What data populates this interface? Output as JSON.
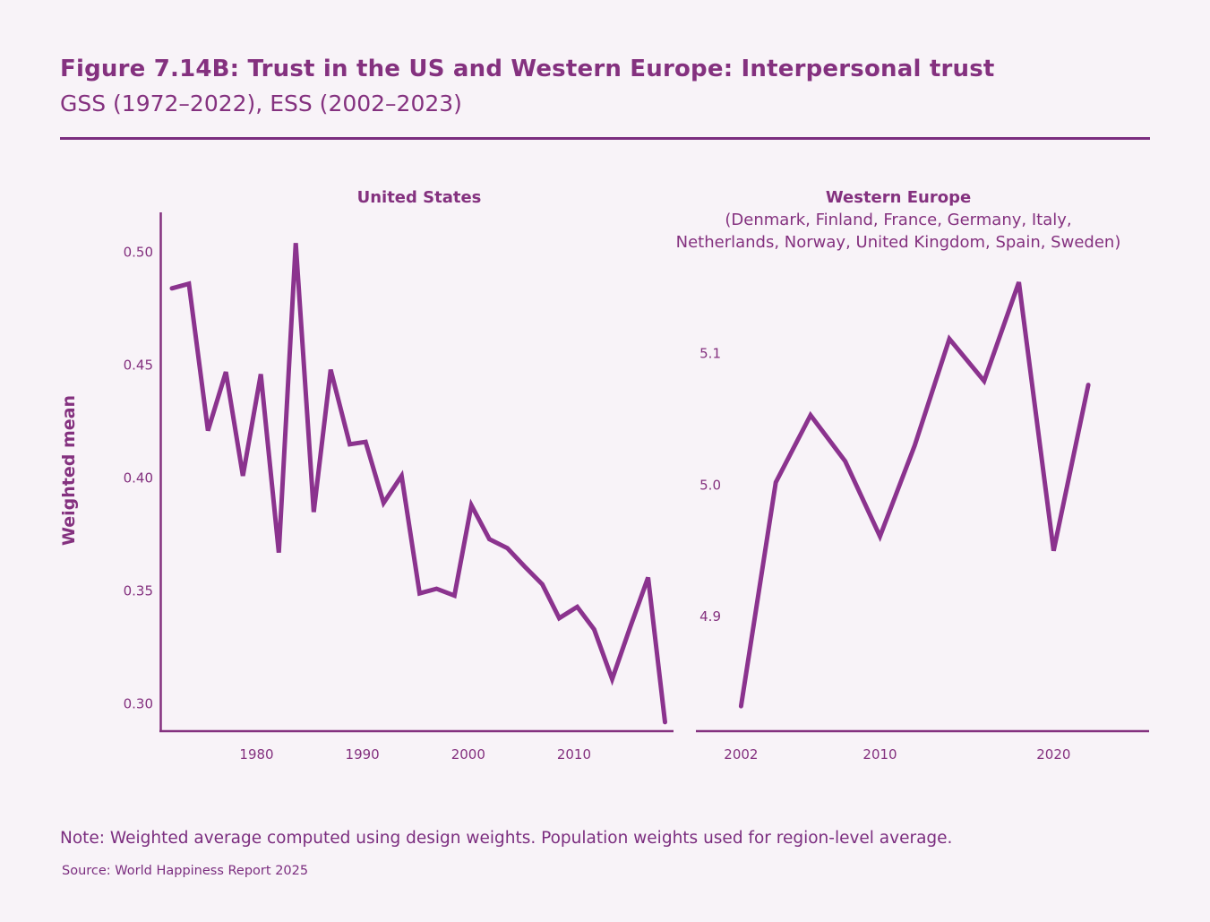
{
  "header": {
    "title": "Figure 7.14B: Trust in the US and Western Europe: Interpersonal trust",
    "subtitle": "GSS (1972–2022), ESS (2002–2023)"
  },
  "footer": {
    "note": "Note: Weighted average computed using design weights. Population weights used for region-level average.",
    "source": "Source: World Happiness Report 2025"
  },
  "colors": {
    "accent": "#84317f",
    "line": "#8b338e",
    "background": "#f8f3f8"
  },
  "chart_data": [
    {
      "type": "line",
      "title": "United States",
      "subtitle": "",
      "xlabel": "",
      "ylabel": "Weighted mean",
      "xlim": [
        1970.9,
        2019.4
      ],
      "ylim": [
        0.288,
        0.52
      ],
      "xticks": [
        1980,
        1990,
        2000,
        2010
      ],
      "xtick_labels": [
        "1980",
        "1990",
        "2000",
        "2010"
      ],
      "yticks": [
        0.3,
        0.35,
        0.4,
        0.45,
        0.5
      ],
      "ytick_labels": [
        "0.30",
        "0.35",
        "0.40",
        "0.45",
        "0.50"
      ],
      "grid": false,
      "series": [
        {
          "name": "United States",
          "x": [
            1972.0,
            1973.6,
            1975.4,
            1977.1,
            1978.7,
            1980.4,
            1982.1,
            1983.7,
            1985.4,
            1987.0,
            1988.8,
            1990.3,
            1992.0,
            1993.7,
            1995.4,
            1997.0,
            1998.7,
            2000.3,
            2002.0,
            2003.7,
            2005.3,
            2007.0,
            2008.6,
            2010.3,
            2011.9,
            2013.6,
            2015.3,
            2017.0,
            2018.6
          ],
          "y": [
            0.484,
            0.486,
            0.421,
            0.447,
            0.401,
            0.446,
            0.367,
            0.504,
            0.385,
            0.448,
            0.415,
            0.416,
            0.389,
            0.401,
            0.349,
            0.351,
            0.348,
            0.388,
            0.373,
            0.369,
            0.361,
            0.353,
            0.338,
            0.343,
            0.333,
            0.311,
            0.334,
            0.356,
            0.292
          ]
        }
      ]
    },
    {
      "type": "line",
      "title": "Western Europe",
      "subtitle": [
        "(Denmark, Finland, France, Germany, Italy,",
        "Netherlands, Norway, United Kingdom, Spain, Sweden)"
      ],
      "xlabel": "",
      "ylabel": "",
      "xlim": [
        1999.4,
        2025.5
      ],
      "ylim": [
        4.813,
        5.235
      ],
      "xticks": [
        2002,
        2010,
        2020
      ],
      "xtick_labels": [
        "2002",
        "2010",
        "2020"
      ],
      "yticks": [
        4.9,
        5.0,
        5.1
      ],
      "ytick_labels": [
        "4.9",
        "5.0",
        "5.1"
      ],
      "grid": false,
      "series": [
        {
          "name": "Western Europe",
          "x": [
            2002,
            2004,
            2006,
            2008,
            2010,
            2012,
            2014,
            2016,
            2018,
            2020,
            2022
          ],
          "y": [
            4.832,
            5.002,
            5.053,
            5.018,
            4.961,
            5.03,
            5.111,
            5.079,
            5.154,
            4.95,
            5.076
          ]
        }
      ]
    }
  ]
}
